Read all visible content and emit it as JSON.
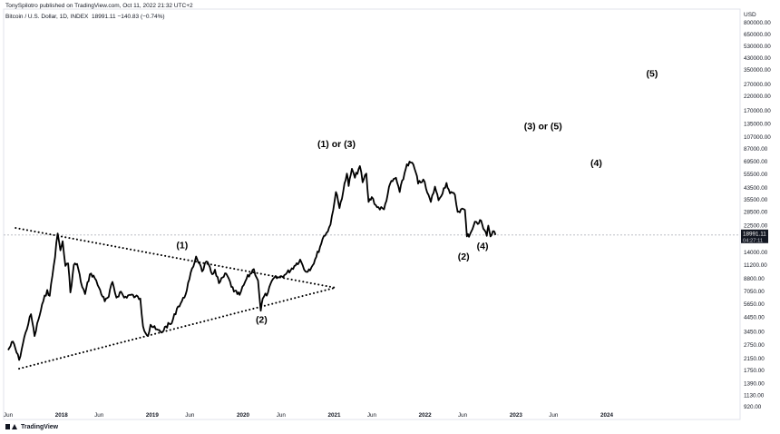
{
  "header": {
    "publisher_line": "TonySpilotro published on TradingView.com, Oct 11, 2022 21:32 UTC+2",
    "symbol_line": "Bitcoin / U.S. Dollar, 1D, INDEX",
    "last_price": "18991.11",
    "change": "−140.83 (−0.74%)"
  },
  "footer": {
    "brand": "TradingView"
  },
  "colors": {
    "price_line": "#000000",
    "grid_dash": "#b2b5be",
    "price_tag_bg": "#131722",
    "axis_text": "#131722"
  },
  "chart_data": {
    "type": "line",
    "title": "",
    "xlabel": "",
    "ylabel": "",
    "y_scale": "log",
    "currency": "USD",
    "x_ticks": [
      {
        "label": "Jun",
        "date": "2017-06-01"
      },
      {
        "label": "2018",
        "date": "2018-01-01"
      },
      {
        "label": "Jun",
        "date": "2018-06-01"
      },
      {
        "label": "2019",
        "date": "2019-01-01"
      },
      {
        "label": "Jun",
        "date": "2019-06-01"
      },
      {
        "label": "2020",
        "date": "2020-01-01"
      },
      {
        "label": "Jun",
        "date": "2020-06-01"
      },
      {
        "label": "2021",
        "date": "2021-01-01"
      },
      {
        "label": "Jun",
        "date": "2021-06-01"
      },
      {
        "label": "2022",
        "date": "2022-01-01"
      },
      {
        "label": "Jun",
        "date": "2022-06-01"
      },
      {
        "label": "2023",
        "date": "2023-01-01"
      },
      {
        "label": "Jun",
        "date": "2023-06-01"
      },
      {
        "label": "2024",
        "date": "2024-01-01"
      }
    ],
    "y_ticks": [
      {
        "label": "800000.00",
        "value": 800000
      },
      {
        "label": "650000.00",
        "value": 650000
      },
      {
        "label": "530000.00",
        "value": 530000
      },
      {
        "label": "430000.00",
        "value": 430000
      },
      {
        "label": "350000.00",
        "value": 350000
      },
      {
        "label": "270000.00",
        "value": 270000
      },
      {
        "label": "220000.00",
        "value": 220000
      },
      {
        "label": "170000.00",
        "value": 170000
      },
      {
        "label": "135000.00",
        "value": 135000
      },
      {
        "label": "107000.00",
        "value": 107000
      },
      {
        "label": "87000.00",
        "value": 87000
      },
      {
        "label": "69500.00",
        "value": 69500
      },
      {
        "label": "55500.00",
        "value": 55500
      },
      {
        "label": "43500.00",
        "value": 43500
      },
      {
        "label": "35500.00",
        "value": 35500
      },
      {
        "label": "28500.00",
        "value": 28500
      },
      {
        "label": "22500.00",
        "value": 22500
      },
      {
        "label": "14000.00",
        "value": 14000
      },
      {
        "label": "11200.00",
        "value": 11200
      },
      {
        "label": "8800.00",
        "value": 8800
      },
      {
        "label": "7050.00",
        "value": 7050
      },
      {
        "label": "5650.00",
        "value": 5650
      },
      {
        "label": "4450.00",
        "value": 4450
      },
      {
        "label": "3450.00",
        "value": 3450
      },
      {
        "label": "2750.00",
        "value": 2750
      },
      {
        "label": "2150.00",
        "value": 2150
      },
      {
        "label": "1750.00",
        "value": 1750
      },
      {
        "label": "1390.00",
        "value": 1390
      },
      {
        "label": "1130.00",
        "value": 1130
      },
      {
        "label": "920.00",
        "value": 920
      }
    ],
    "price_tag": {
      "price": "18991.11",
      "countdown": "04:27:11",
      "value": 18991.11
    },
    "series": [
      {
        "points": [
          [
            "2017-06-01",
            2500
          ],
          [
            "2017-06-20",
            2900
          ],
          [
            "2017-07-15",
            2100
          ],
          [
            "2017-08-10",
            3400
          ],
          [
            "2017-09-01",
            4700
          ],
          [
            "2017-09-15",
            3200
          ],
          [
            "2017-10-01",
            4300
          ],
          [
            "2017-10-20",
            5900
          ],
          [
            "2017-11-05",
            7200
          ],
          [
            "2017-11-15",
            6500
          ],
          [
            "2017-12-01",
            11000
          ],
          [
            "2017-12-17",
            19500
          ],
          [
            "2017-12-28",
            14500
          ],
          [
            "2018-01-06",
            17000
          ],
          [
            "2018-01-17",
            11000
          ],
          [
            "2018-01-28",
            11500
          ],
          [
            "2018-02-06",
            6900
          ],
          [
            "2018-02-20",
            11200
          ],
          [
            "2018-03-05",
            11400
          ],
          [
            "2018-03-20",
            8300
          ],
          [
            "2018-04-06",
            6700
          ],
          [
            "2018-04-25",
            9500
          ],
          [
            "2018-05-10",
            9300
          ],
          [
            "2018-06-01",
            7500
          ],
          [
            "2018-06-24",
            5900
          ],
          [
            "2018-07-10",
            6400
          ],
          [
            "2018-07-25",
            8300
          ],
          [
            "2018-08-10",
            6300
          ],
          [
            "2018-08-28",
            7000
          ],
          [
            "2018-09-10",
            6300
          ],
          [
            "2018-10-01",
            6600
          ],
          [
            "2018-10-25",
            6400
          ],
          [
            "2018-11-14",
            6200
          ],
          [
            "2018-11-25",
            3800
          ],
          [
            "2018-12-15",
            3200
          ],
          [
            "2018-12-25",
            3900
          ],
          [
            "2019-01-15",
            3600
          ],
          [
            "2019-02-07",
            3400
          ],
          [
            "2019-02-25",
            3800
          ],
          [
            "2019-03-20",
            4000
          ],
          [
            "2019-04-10",
            5200
          ],
          [
            "2019-05-10",
            6300
          ],
          [
            "2019-05-30",
            8700
          ],
          [
            "2019-06-26",
            13000
          ],
          [
            "2019-07-10",
            11500
          ],
          [
            "2019-07-20",
            10000
          ],
          [
            "2019-08-06",
            11900
          ],
          [
            "2019-08-30",
            9500
          ],
          [
            "2019-09-10",
            10300
          ],
          [
            "2019-09-26",
            8100
          ],
          [
            "2019-10-25",
            9600
          ],
          [
            "2019-11-25",
            7000
          ],
          [
            "2019-12-18",
            6600
          ],
          [
            "2020-01-15",
            8800
          ],
          [
            "2020-02-13",
            10400
          ],
          [
            "2020-03-01",
            8500
          ],
          [
            "2020-03-12",
            5000
          ],
          [
            "2020-03-20",
            6200
          ],
          [
            "2020-04-10",
            6900
          ],
          [
            "2020-05-01",
            8800
          ],
          [
            "2020-05-25",
            9000
          ],
          [
            "2020-06-20",
            9500
          ],
          [
            "2020-07-25",
            11000
          ],
          [
            "2020-08-17",
            12300
          ],
          [
            "2020-09-07",
            10000
          ],
          [
            "2020-10-01",
            10700
          ],
          [
            "2020-10-21",
            12900
          ],
          [
            "2020-11-20",
            18600
          ],
          [
            "2020-12-01",
            19700
          ],
          [
            "2020-12-17",
            22800
          ],
          [
            "2021-01-08",
            40500
          ],
          [
            "2021-01-22",
            30500
          ],
          [
            "2021-02-21",
            56000
          ],
          [
            "2021-02-28",
            45000
          ],
          [
            "2021-03-13",
            61000
          ],
          [
            "2021-03-25",
            52000
          ],
          [
            "2021-04-14",
            64000
          ],
          [
            "2021-04-25",
            48000
          ],
          [
            "2021-05-10",
            56000
          ],
          [
            "2021-05-19",
            34000
          ],
          [
            "2021-06-01",
            37000
          ],
          [
            "2021-06-22",
            31000
          ],
          [
            "2021-07-20",
            29800
          ],
          [
            "2021-08-14",
            47000
          ],
          [
            "2021-09-06",
            52000
          ],
          [
            "2021-09-21",
            40500
          ],
          [
            "2021-10-20",
            66000
          ],
          [
            "2021-11-10",
            68000
          ],
          [
            "2021-11-25",
            57000
          ],
          [
            "2021-12-04",
            47000
          ],
          [
            "2021-12-25",
            50500
          ],
          [
            "2022-01-10",
            40000
          ],
          [
            "2022-01-24",
            34000
          ],
          [
            "2022-02-10",
            44500
          ],
          [
            "2022-02-24",
            35000
          ],
          [
            "2022-03-28",
            47500
          ],
          [
            "2022-04-11",
            39500
          ],
          [
            "2022-05-01",
            38500
          ],
          [
            "2022-05-12",
            28500
          ],
          [
            "2022-05-25",
            29800
          ],
          [
            "2022-06-10",
            29500
          ],
          [
            "2022-06-18",
            18500
          ],
          [
            "2022-07-01",
            19300
          ],
          [
            "2022-07-20",
            24000
          ],
          [
            "2022-08-01",
            23000
          ],
          [
            "2022-08-14",
            24500
          ],
          [
            "2022-09-06",
            18700
          ],
          [
            "2022-09-12",
            22400
          ],
          [
            "2022-09-21",
            18500
          ],
          [
            "2022-10-05",
            20300
          ],
          [
            "2022-10-11",
            18991
          ]
        ]
      }
    ],
    "trendlines": [
      {
        "from": [
          "2017-07-01",
          21500
        ],
        "to": [
          "2021-01-05",
          7500
        ]
      },
      {
        "from": [
          "2017-07-15",
          1800
        ],
        "to": [
          "2021-01-05",
          7500
        ]
      }
    ],
    "annotations": [
      {
        "label": "(1)",
        "date": "2019-05-01",
        "value": 15000
      },
      {
        "label": "(2)",
        "date": "2020-03-15",
        "value": 4050
      },
      {
        "label": "(1) or (3)",
        "date": "2021-01-10",
        "value": 89000
      },
      {
        "label": "(2)",
        "date": "2022-06-05",
        "value": 12300
      },
      {
        "label": "(4)",
        "date": "2022-08-20",
        "value": 14800
      },
      {
        "label": "(3) or (5)",
        "date": "2023-04-20",
        "value": 122000
      },
      {
        "label": "(4)",
        "date": "2023-11-20",
        "value": 64000
      },
      {
        "label": "(5)",
        "date": "2024-07-01",
        "value": 310000
      }
    ]
  }
}
